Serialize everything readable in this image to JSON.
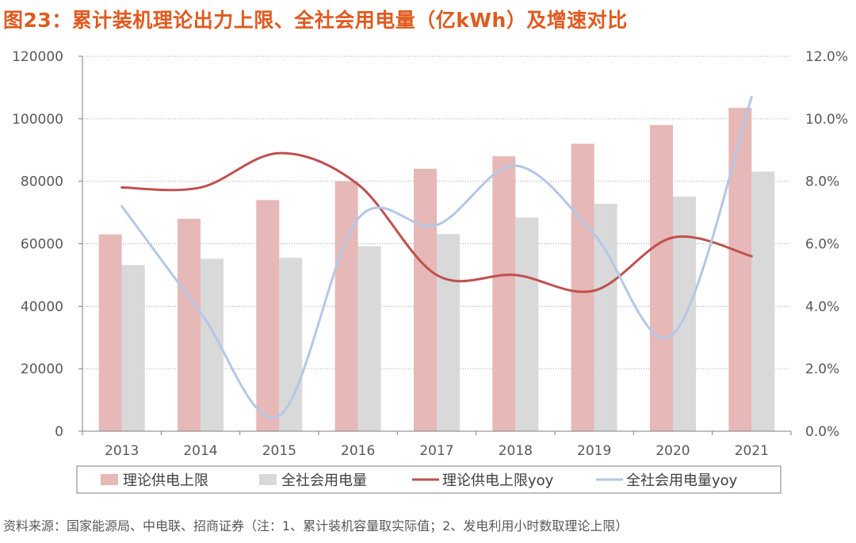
{
  "title": "图23：累计装机理论出力上限、全社会用电量（亿kWh）及增速对比",
  "source": "资料来源：国家能源局、中电联、招商证券（注：1、累计装机容量取实际值；2、发电利用小时数取理论上限）",
  "colors": {
    "bar_supply": "#e6b8b7",
    "bar_consumption": "#d9d9d9",
    "line_supply": "#c0504d",
    "line_consumption": "#b4c7e7",
    "title": "#e05a1f"
  },
  "chart_data": {
    "type": "bar+line",
    "categories": [
      "2013",
      "2014",
      "2015",
      "2016",
      "2017",
      "2018",
      "2019",
      "2020",
      "2021"
    ],
    "y_left": {
      "min": 0,
      "max": 120000,
      "ticks": [
        "0",
        "20000",
        "40000",
        "60000",
        "80000",
        "100000",
        "120000"
      ]
    },
    "y_right": {
      "min": 0,
      "max": 12.0,
      "ticks": [
        "0.0%",
        "2.0%",
        "4.0%",
        "6.0%",
        "8.0%",
        "10.0%",
        "12.0%"
      ]
    },
    "bar_series": [
      {
        "name": "理论供电上限",
        "values": [
          63000,
          68000,
          74000,
          80000,
          84000,
          88000,
          92000,
          98000,
          103500
        ]
      },
      {
        "name": "全社会用电量",
        "values": [
          53200,
          55200,
          55500,
          59200,
          63100,
          68400,
          72800,
          75100,
          83100
        ]
      }
    ],
    "line_series": [
      {
        "name": "理论供电上限yoy",
        "values": [
          7.8,
          7.8,
          8.9,
          7.9,
          5.0,
          5.0,
          4.5,
          6.2,
          5.6
        ]
      },
      {
        "name": "全社会用电量yoy",
        "values": [
          7.2,
          3.8,
          0.5,
          6.8,
          6.6,
          8.5,
          6.3,
          3.1,
          10.7
        ]
      }
    ],
    "legend_position": "bottom",
    "grid": "horizontal dotted"
  }
}
